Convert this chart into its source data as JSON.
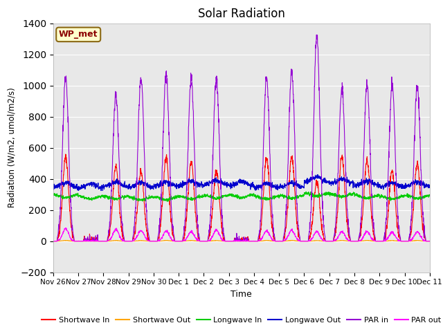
{
  "title": "Solar Radiation",
  "ylabel": "Radiation (W/m2, umol/m2/s)",
  "xlabel": "Time",
  "ylim": [
    -200,
    1400
  ],
  "yticks": [
    -200,
    0,
    200,
    400,
    600,
    800,
    1000,
    1200,
    1400
  ],
  "background_color": "#e8e8e8",
  "annotation_text": "WP_met",
  "annotation_bg": "#ffffcc",
  "annotation_border": "#8b6914",
  "annotation_text_color": "#8b0000",
  "legend_entries": [
    "Shortwave In",
    "Shortwave Out",
    "Longwave In",
    "Longwave Out",
    "PAR in",
    "PAR out"
  ],
  "legend_colors": [
    "#ff0000",
    "#ffa500",
    "#00cc00",
    "#0000cd",
    "#9400d3",
    "#ff00ff"
  ],
  "n_days": 15,
  "xtick_labels": [
    "Nov 26",
    "Nov 27",
    "Nov 28",
    "Nov 29",
    "Nov 30",
    "Dec 1",
    "Dec 2",
    "Dec 3",
    "Dec 4",
    "Dec 5",
    "Dec 6",
    "Dec 7",
    "Dec 8",
    "Dec 9",
    "Dec 10",
    "Dec 11"
  ]
}
